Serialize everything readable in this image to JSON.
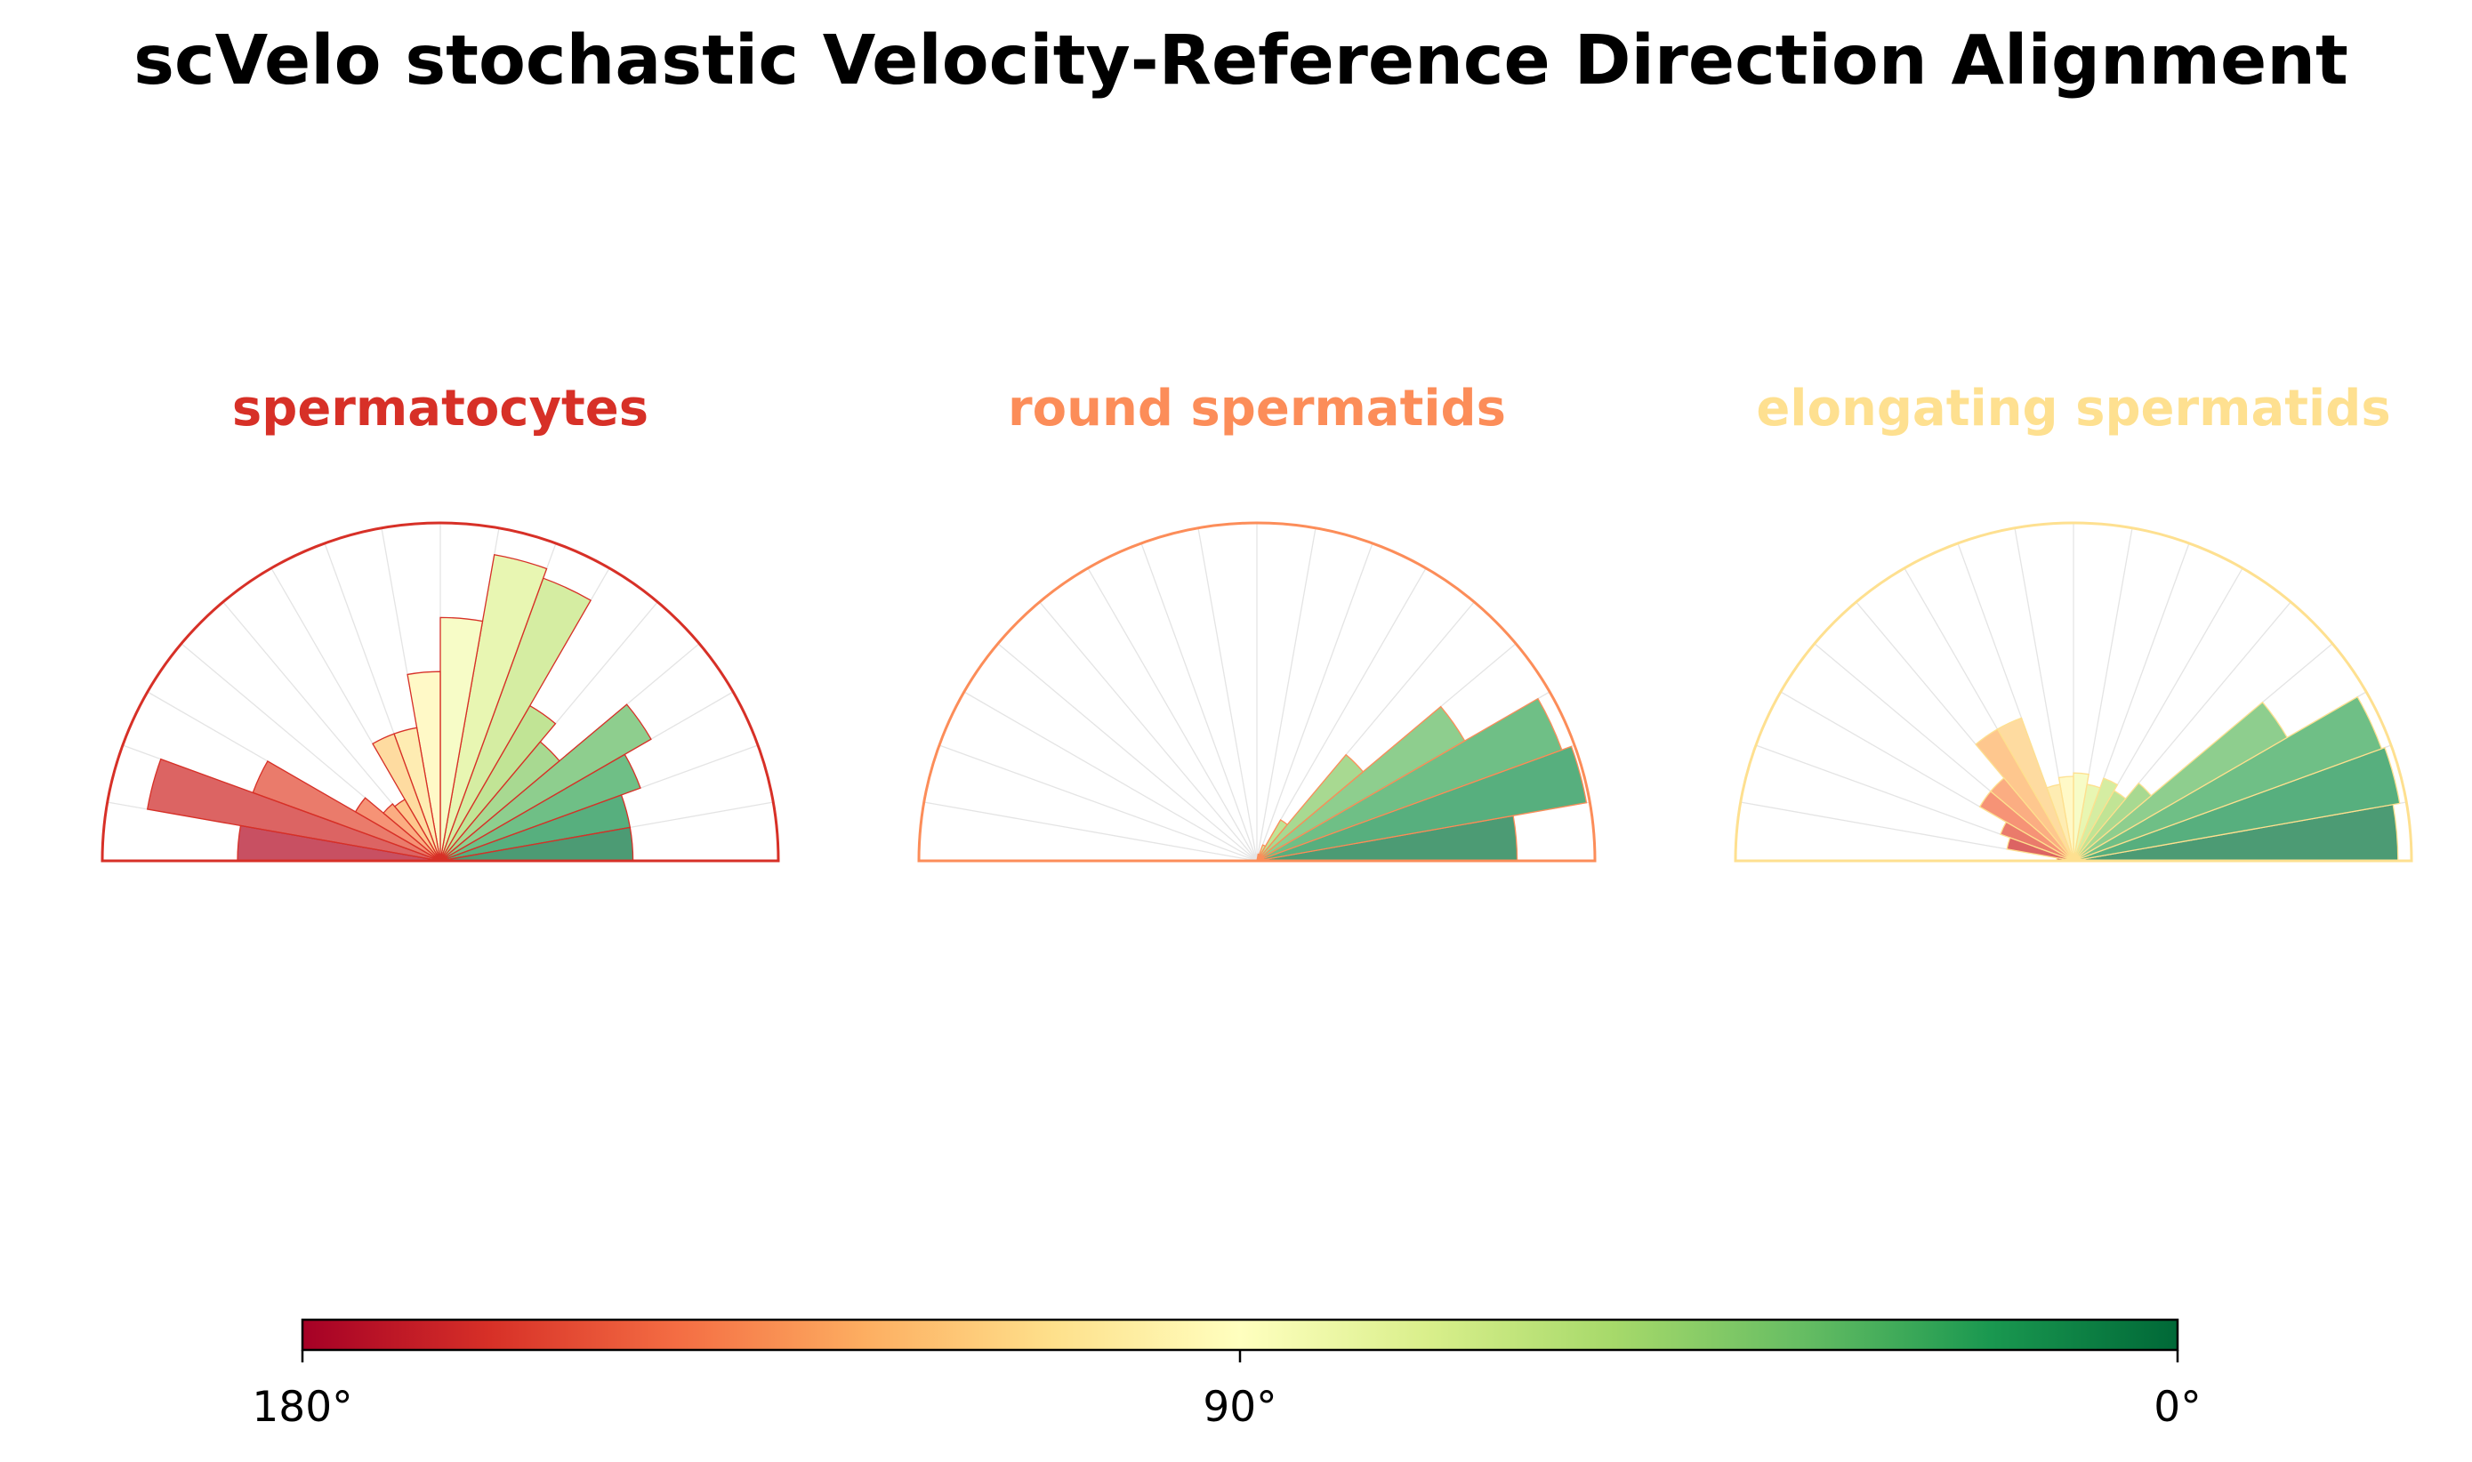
{
  "title": "scVelo stochastic Velocity-Reference Direction Alignment",
  "chart_data": [
    {
      "type": "polar-bar",
      "title": "spermatocytes",
      "color": "#d73027",
      "angle_range_deg": [
        0,
        180
      ],
      "bin_width_deg": 10,
      "bin_centers_deg": [
        5,
        15,
        25,
        35,
        45,
        55,
        65,
        75,
        85,
        95,
        105,
        115,
        125,
        135,
        145,
        155,
        165,
        175
      ],
      "values": [
        0.57,
        0.57,
        0.63,
        0.72,
        0.46,
        0.53,
        0.89,
        0.92,
        0.72,
        0.56,
        0.4,
        0.4,
        0.21,
        0.22,
        0.29,
        0.59,
        0.88,
        0.6
      ],
      "grid": true
    },
    {
      "type": "polar-bar",
      "title": "round spermatids",
      "color": "#fc8d59",
      "angle_range_deg": [
        0,
        180
      ],
      "bin_width_deg": 10,
      "bin_centers_deg": [
        5,
        15,
        25,
        35,
        45,
        55,
        65,
        75,
        85,
        95,
        105,
        115,
        125,
        135,
        145,
        155,
        165,
        175
      ],
      "values": [
        0.77,
        0.99,
        0.96,
        0.71,
        0.41,
        0.14,
        0.05,
        0.02,
        0.0,
        0.0,
        0.0,
        0.0,
        0.0,
        0.0,
        0.0,
        0.0,
        0.0,
        0.0
      ],
      "grid": true
    },
    {
      "type": "polar-bar",
      "title": "elongating spermatids",
      "color": "#fee090",
      "angle_range_deg": [
        0,
        180
      ],
      "bin_width_deg": 10,
      "bin_centers_deg": [
        5,
        15,
        25,
        35,
        45,
        55,
        65,
        75,
        85,
        95,
        105,
        115,
        125,
        135,
        145,
        155,
        165,
        175
      ],
      "values": [
        0.96,
        0.98,
        0.97,
        0.73,
        0.3,
        0.24,
        0.26,
        0.23,
        0.26,
        0.25,
        0.23,
        0.45,
        0.45,
        0.32,
        0.32,
        0.23,
        0.2,
        0.05
      ],
      "grid": true
    }
  ],
  "colorbar": {
    "colormap": "RdYlGn",
    "ticks": [
      "180°",
      "90°",
      "0°"
    ],
    "stops": [
      "#a50026",
      "#d73027",
      "#f46d43",
      "#fdae61",
      "#fee08b",
      "#ffffbf",
      "#d9ef8b",
      "#a6d96a",
      "#66bd63",
      "#1a9850",
      "#006837"
    ]
  }
}
